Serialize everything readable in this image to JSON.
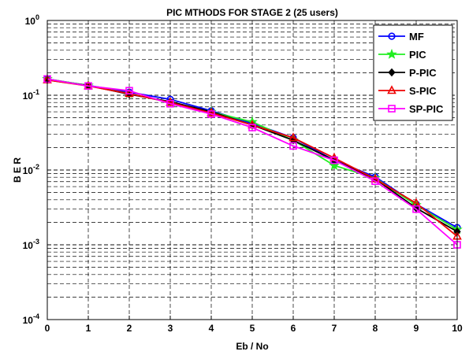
{
  "chart_data": {
    "type": "line",
    "title": "PIC MTHODS FOR STAGE 2  (25 users)",
    "xlabel": "Eb / No",
    "ylabel": "B E R",
    "xlim": [
      0,
      10
    ],
    "ylim": [
      0.0001,
      1
    ],
    "y_scale": "log",
    "x_ticks": [
      "0",
      "1",
      "2",
      "3",
      "4",
      "5",
      "6",
      "7",
      "8",
      "9",
      "10"
    ],
    "y_ticks": [
      {
        "base": "10",
        "exp": "0",
        "value": 1
      },
      {
        "base": "10",
        "exp": "-1",
        "value": 0.1
      },
      {
        "base": "10",
        "exp": "-2",
        "value": 0.01
      },
      {
        "base": "10",
        "exp": "-3",
        "value": 0.001
      },
      {
        "base": "10",
        "exp": "-4",
        "value": 0.0001
      }
    ],
    "grid": true,
    "grid_style": "dashed",
    "legend_position": "top-right",
    "x": [
      0,
      1,
      2,
      3,
      4,
      5,
      6,
      7,
      8,
      9,
      10
    ],
    "series": [
      {
        "name": "MF",
        "color": "#0000ff",
        "marker": "circle",
        "values": [
          0.165,
          0.135,
          0.11,
          0.088,
          0.062,
          0.042,
          0.027,
          0.0135,
          0.0081,
          0.0035,
          0.0017
        ]
      },
      {
        "name": "PIC",
        "color": "#22ee22",
        "marker": "star",
        "values": [
          0.165,
          0.135,
          0.105,
          0.08,
          0.06,
          0.044,
          0.025,
          0.0115,
          0.0078,
          0.0034,
          0.0016
        ]
      },
      {
        "name": "P-PIC",
        "color": "#000000",
        "marker": "diamond",
        "values": [
          0.16,
          0.135,
          0.103,
          0.082,
          0.06,
          0.04,
          0.025,
          0.0135,
          0.0076,
          0.0031,
          0.0015
        ]
      },
      {
        "name": "S-PIC",
        "color": "#ee0000",
        "marker": "triangle",
        "values": [
          0.16,
          0.133,
          0.105,
          0.08,
          0.058,
          0.04,
          0.027,
          0.0145,
          0.0076,
          0.0036,
          0.0013
        ]
      },
      {
        "name": "SP-PIC",
        "color": "#ff00ff",
        "marker": "square",
        "values": [
          0.165,
          0.133,
          0.115,
          0.077,
          0.056,
          0.037,
          0.021,
          0.0135,
          0.0071,
          0.003,
          0.001
        ]
      }
    ]
  }
}
